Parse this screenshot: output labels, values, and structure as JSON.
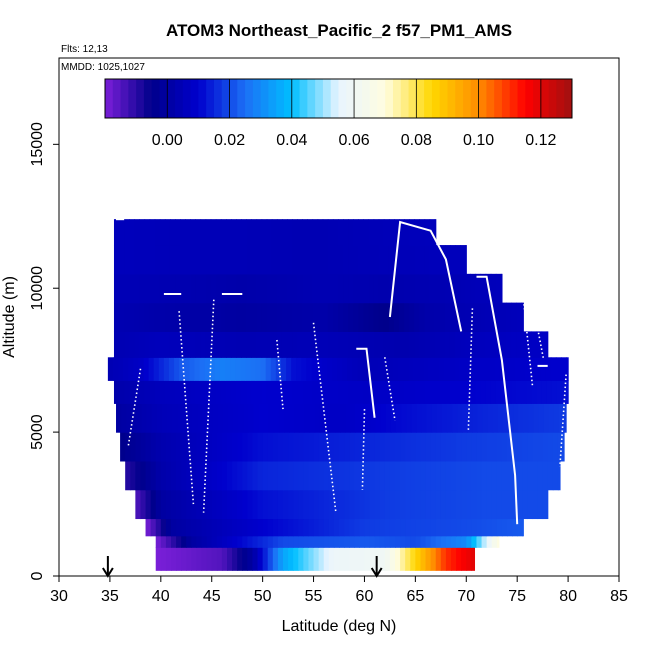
{
  "chart_data": {
    "type": "heatmap",
    "title": "ATOM3 Northeast_Pacific_2 f57_PM1_AMS",
    "notes": [
      "Flts: 12,13",
      "MMDD: 1025,1027"
    ],
    "xlabel": "Latitude (deg N)",
    "ylabel": "Altitude (m)",
    "xlim": [
      30,
      85
    ],
    "ylim": [
      0,
      18000
    ],
    "x_ticks": [
      "30",
      "35",
      "40",
      "45",
      "50",
      "55",
      "60",
      "65",
      "70",
      "75",
      "80",
      "85"
    ],
    "y_ticks": [
      "0",
      "5000",
      "10000",
      "15000"
    ],
    "colorbar": {
      "range": [
        -0.02,
        0.13
      ],
      "tick_values": [
        0.0,
        0.02,
        0.04,
        0.06,
        0.08,
        0.1,
        0.12
      ],
      "tick_labels": [
        "0.00",
        "0.02",
        "0.04",
        "0.06",
        "0.08",
        "0.10",
        "0.12"
      ],
      "palette": [
        "#7b1fd8",
        "#00008b",
        "#0000cd",
        "#1c6ff5",
        "#00bfff",
        "#e8f4ff",
        "#fffde0",
        "#ffd700",
        "#ff8c00",
        "#ff0000",
        "#a01010"
      ]
    },
    "arrows_lat": [
      34.8,
      61.2
    ],
    "flight_tracks": [
      {
        "points": [
          [
            35.6,
            12400
          ],
          [
            36.4,
            12400
          ]
        ]
      },
      {
        "points": [
          [
            40.3,
            9800
          ],
          [
            42.0,
            9800
          ]
        ]
      },
      {
        "points": [
          [
            46.0,
            9800
          ],
          [
            48.0,
            9800
          ]
        ]
      },
      {
        "points": [
          [
            59.2,
            7900
          ],
          [
            60.2,
            7900
          ],
          [
            61.0,
            5500
          ]
        ]
      },
      {
        "points": [
          [
            62.5,
            9000
          ],
          [
            63.5,
            12300
          ],
          [
            66.5,
            12000
          ],
          [
            68.0,
            11000
          ],
          [
            69.5,
            8500
          ]
        ]
      },
      {
        "points": [
          [
            71.0,
            10400
          ],
          [
            72.0,
            10400
          ],
          [
            73.5,
            7500
          ],
          [
            74.8,
            3500
          ],
          [
            75.0,
            1800
          ]
        ]
      },
      {
        "points": [
          [
            77.0,
            7300
          ],
          [
            78.0,
            7300
          ]
        ]
      }
    ],
    "profiles": [
      {
        "points": [
          [
            38.0,
            7200
          ],
          [
            36.8,
            4500
          ]
        ]
      },
      {
        "points": [
          [
            41.8,
            9200
          ],
          [
            43.2,
            2500
          ]
        ]
      },
      {
        "points": [
          [
            45.2,
            9600
          ],
          [
            44.2,
            2200
          ]
        ]
      },
      {
        "points": [
          [
            51.4,
            8200
          ],
          [
            52.0,
            5800
          ]
        ]
      },
      {
        "points": [
          [
            55.0,
            8800
          ],
          [
            57.2,
            2200
          ]
        ]
      },
      {
        "points": [
          [
            60.0,
            5800
          ],
          [
            59.8,
            3000
          ]
        ]
      },
      {
        "points": [
          [
            62.0,
            7600
          ],
          [
            63.0,
            5400
          ]
        ]
      },
      {
        "points": [
          [
            70.6,
            9300
          ],
          [
            70.2,
            5000
          ]
        ]
      },
      {
        "points": [
          [
            75.5,
            10000
          ],
          [
            76.5,
            6600
          ]
        ]
      },
      {
        "points": [
          [
            76.8,
            9000
          ],
          [
            77.6,
            7500
          ]
        ]
      },
      {
        "points": [
          [
            79.8,
            7000
          ],
          [
            79.2,
            3800
          ]
        ]
      }
    ],
    "field_rows": [
      {
        "alt": [
          200,
          1000
        ],
        "lat": [
          39.5,
          70.8
        ],
        "stops": [
          [
            39.5,
            -0.02
          ],
          [
            46,
            -0.015
          ],
          [
            49,
            0.0
          ],
          [
            52,
            0.035
          ],
          [
            57,
            0.058
          ],
          [
            62,
            0.06
          ],
          [
            65,
            0.085
          ],
          [
            68,
            0.11
          ],
          [
            70.8,
            0.12
          ]
        ]
      },
      {
        "alt": [
          1000,
          1400
        ],
        "lat": [
          39.5,
          73.2
        ],
        "stops": [
          [
            39.5,
            -0.02
          ],
          [
            43,
            0.0
          ],
          [
            52,
            0.02
          ],
          [
            60,
            0.022
          ],
          [
            65,
            0.02
          ],
          [
            70,
            0.03
          ],
          [
            73.2,
            0.07
          ]
        ]
      },
      {
        "alt": [
          1400,
          2000
        ],
        "lat": [
          38.5,
          75.6
        ],
        "stops": [
          [
            38.5,
            -0.02
          ],
          [
            41,
            0.0
          ],
          [
            50,
            0.01
          ],
          [
            60,
            0.018
          ],
          [
            70,
            0.02
          ],
          [
            75.6,
            0.022
          ]
        ]
      },
      {
        "alt": [
          2000,
          3000
        ],
        "lat": [
          37.5,
          78.0
        ],
        "stops": [
          [
            37.5,
            -0.015
          ],
          [
            40,
            0.0
          ],
          [
            50,
            0.012
          ],
          [
            62,
            0.018
          ],
          [
            72,
            0.02
          ],
          [
            78.0,
            0.02
          ]
        ]
      },
      {
        "alt": [
          3000,
          4000
        ],
        "lat": [
          36.5,
          79.2
        ],
        "stops": [
          [
            36.5,
            -0.01
          ],
          [
            40,
            0.002
          ],
          [
            50,
            0.015
          ],
          [
            62,
            0.018
          ],
          [
            72,
            0.02
          ],
          [
            79.2,
            0.02
          ]
        ]
      },
      {
        "alt": [
          4000,
          5000
        ],
        "lat": [
          36.0,
          79.6
        ],
        "stops": [
          [
            36.0,
            -0.005
          ],
          [
            40,
            0.003
          ],
          [
            50,
            0.012
          ],
          [
            60,
            0.015
          ],
          [
            70,
            0.018
          ],
          [
            79.6,
            0.02
          ]
        ]
      },
      {
        "alt": [
          5000,
          6000
        ],
        "lat": [
          35.6,
          79.8
        ],
        "stops": [
          [
            35.6,
            0.0
          ],
          [
            40,
            0.005
          ],
          [
            50,
            0.01
          ],
          [
            58,
            0.008
          ],
          [
            65,
            0.012
          ],
          [
            72,
            0.015
          ],
          [
            79.8,
            0.018
          ]
        ]
      },
      {
        "alt": [
          6000,
          6800
        ],
        "lat": [
          35.4,
          80.0
        ],
        "stops": [
          [
            35.4,
            0.002
          ],
          [
            40,
            0.006
          ],
          [
            50,
            0.01
          ],
          [
            60,
            0.008
          ],
          [
            70,
            0.01
          ],
          [
            80.0,
            0.012
          ]
        ]
      },
      {
        "alt": [
          6800,
          7600
        ],
        "lat": [
          34.8,
          80.0
        ],
        "stops": [
          [
            34.8,
            0.004
          ],
          [
            38,
            0.008
          ],
          [
            42,
            0.022
          ],
          [
            46,
            0.028
          ],
          [
            50,
            0.025
          ],
          [
            53,
            0.012
          ],
          [
            60,
            0.005
          ],
          [
            70,
            0.008
          ],
          [
            80.0,
            0.01
          ]
        ]
      },
      {
        "alt": [
          7600,
          8500
        ],
        "lat": [
          35.4,
          78.0
        ],
        "stops": [
          [
            35.4,
            0.004
          ],
          [
            40,
            0.006
          ],
          [
            48,
            0.004
          ],
          [
            56,
            0.005
          ],
          [
            64,
            0.003
          ],
          [
            70,
            0.006
          ],
          [
            78.0,
            0.008
          ]
        ]
      },
      {
        "alt": [
          8500,
          9500
        ],
        "lat": [
          35.4,
          75.6
        ],
        "stops": [
          [
            35.4,
            0.004
          ],
          [
            40,
            0.002
          ],
          [
            48,
            0.0
          ],
          [
            56,
            0.002
          ],
          [
            62,
            -0.005
          ],
          [
            66,
            0.002
          ],
          [
            70,
            0.004
          ],
          [
            75.6,
            0.006
          ]
        ]
      },
      {
        "alt": [
          9500,
          10500
        ],
        "lat": [
          35.4,
          73.5
        ],
        "stops": [
          [
            35.4,
            0.005
          ],
          [
            40,
            0.004
          ],
          [
            48,
            0.002
          ],
          [
            56,
            0.004
          ],
          [
            62,
            0.003
          ],
          [
            68,
            0.004
          ],
          [
            73.5,
            0.006
          ]
        ]
      },
      {
        "alt": [
          10500,
          11500
        ],
        "lat": [
          35.4,
          70.0
        ],
        "stops": [
          [
            35.4,
            0.006
          ],
          [
            45,
            0.005
          ],
          [
            55,
            0.004
          ],
          [
            62,
            0.005
          ],
          [
            70.0,
            0.006
          ]
        ]
      },
      {
        "alt": [
          11500,
          12400
        ],
        "lat": [
          35.4,
          67.0
        ],
        "stops": [
          [
            35.4,
            0.006
          ],
          [
            45,
            0.005
          ],
          [
            55,
            0.004
          ],
          [
            67.0,
            0.006
          ]
        ]
      }
    ]
  }
}
